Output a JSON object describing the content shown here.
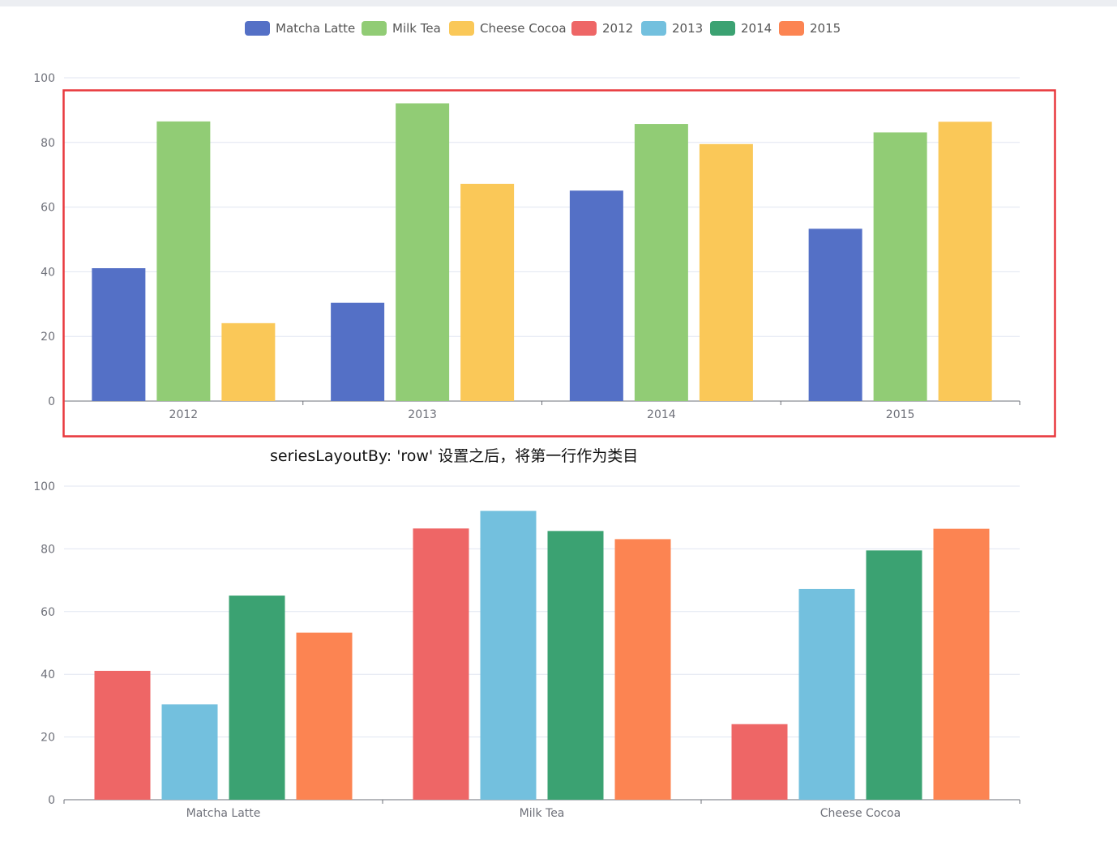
{
  "legend": [
    {
      "name": "Matcha Latte",
      "color": "#5470c6"
    },
    {
      "name": "Milk Tea",
      "color": "#91cc75"
    },
    {
      "name": "Cheese Cocoa",
      "color": "#fac858"
    },
    {
      "name": "2012",
      "color": "#ee6666"
    },
    {
      "name": "2013",
      "color": "#73c0de"
    },
    {
      "name": "2014",
      "color": "#3ba272"
    },
    {
      "name": "2015",
      "color": "#fc8452"
    }
  ],
  "annotation": "seriesLayoutBy: 'row' 设置之后，将第一行作为类目",
  "highlight_color": "#e8383d",
  "chart_data": [
    {
      "type": "bar",
      "title": "",
      "categories": [
        "2012",
        "2013",
        "2014",
        "2015"
      ],
      "series": [
        {
          "name": "Matcha Latte",
          "color": "#5470c6",
          "values": [
            41.1,
            30.4,
            65.1,
            53.3
          ]
        },
        {
          "name": "Milk Tea",
          "color": "#91cc75",
          "values": [
            86.5,
            92.1,
            85.7,
            83.1
          ]
        },
        {
          "name": "Cheese Cocoa",
          "color": "#fac858",
          "values": [
            24.1,
            67.2,
            79.5,
            86.4
          ]
        }
      ],
      "ylim": [
        0,
        100
      ],
      "yticks": [
        0,
        20,
        40,
        60,
        80,
        100
      ],
      "xlabel": "",
      "ylabel": "",
      "grid": true
    },
    {
      "type": "bar",
      "title": "",
      "categories": [
        "Matcha Latte",
        "Milk Tea",
        "Cheese Cocoa"
      ],
      "series": [
        {
          "name": "2012",
          "color": "#ee6666",
          "values": [
            41.1,
            86.5,
            24.1
          ]
        },
        {
          "name": "2013",
          "color": "#73c0de",
          "values": [
            30.4,
            92.1,
            67.2
          ]
        },
        {
          "name": "2014",
          "color": "#3ba272",
          "values": [
            65.1,
            85.7,
            79.5
          ]
        },
        {
          "name": "2015",
          "color": "#fc8452",
          "values": [
            53.3,
            83.1,
            86.4
          ]
        }
      ],
      "ylim": [
        0,
        100
      ],
      "yticks": [
        0,
        20,
        40,
        60,
        80,
        100
      ],
      "xlabel": "",
      "ylabel": "",
      "grid": true
    }
  ]
}
